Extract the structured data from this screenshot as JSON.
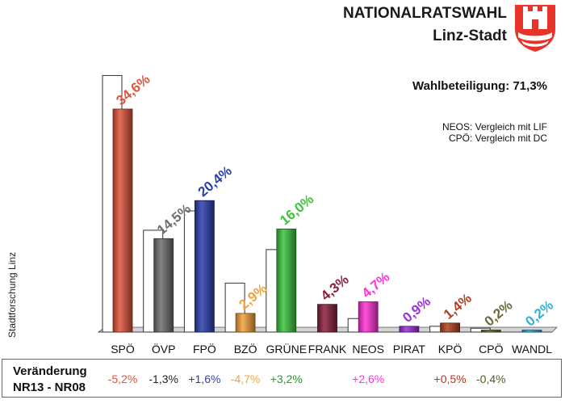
{
  "header": {
    "title": "NATIONALRATSWAHL",
    "subtitle": "Linz-Stadt"
  },
  "turnout": {
    "text": "Wahlbeteiligung:  71,3%"
  },
  "notes": {
    "neos": "NEOS: Vergleich mit LIF",
    "cpo": "CPÖ: Vergleich mit DC"
  },
  "side_label": "Stadtforschung Linz",
  "bottom": {
    "title_line1": "Veränderung",
    "title_line2": "NR13 - NR08"
  },
  "chart_data": {
    "type": "bar",
    "title": "",
    "xlabel": "",
    "ylabel": "",
    "ylim": [
      0,
      46.5
    ],
    "grid": false,
    "categories": [
      "SPÖ",
      "ÖVP",
      "FPÖ",
      "BZÖ",
      "GRÜNE",
      "FRANK",
      "NEOS",
      "PIRAT",
      "KPÖ",
      "CPÖ",
      "WANDL"
    ],
    "series": [
      {
        "name": "",
        "values": [
          34.6,
          14.5,
          20.4,
          2.9,
          16.0,
          4.3,
          4.7,
          0.9,
          1.4,
          0.2,
          0.2
        ],
        "labels": [
          "34,6%",
          "14,5%",
          "20,4%",
          "2,9%",
          "16,0%",
          "4,3%",
          "4,7%",
          "0,9%",
          "1,4%",
          "0,2%",
          "0,2%"
        ],
        "colors": [
          "#e0533c",
          "#6e6e6e",
          "#2b3fae",
          "#f2a23a",
          "#3cc43c",
          "#8a1f3c",
          "#ff33d6",
          "#9b30d9",
          "#b2401e",
          "#6a6a3a",
          "#2ab3d9"
        ]
      },
      {
        "name": "",
        "values": [
          39.8,
          15.8,
          18.8,
          7.6,
          12.8,
          null,
          2.1,
          null,
          0.9,
          0.6,
          null
        ]
      }
    ],
    "changes": [
      "-5,2%",
      "-1,3%",
      "+1,6%",
      "-4,7%",
      "+3,2%",
      "",
      "+2,6%",
      "",
      "+0,5%",
      "-0,4%",
      ""
    ],
    "change_colors": [
      "#e0533c",
      "#222222",
      "#2b3fae",
      "#f2a23a",
      "#2a9a2a",
      "#8a1f3c",
      "#ff33d6",
      "#9b30d9",
      "#c0301a",
      "#5a5a2a",
      "#2ab3d9"
    ]
  }
}
